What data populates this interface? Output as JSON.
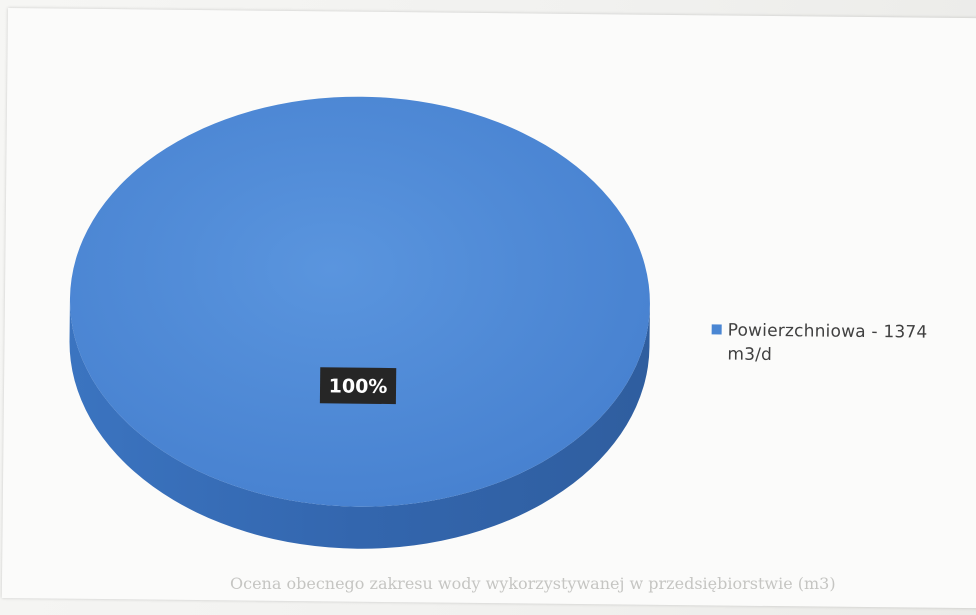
{
  "chart_data": {
    "type": "pie",
    "title": "",
    "slices": [
      {
        "label": "Powierzchniowa - 1374 m3/d",
        "value": 1374,
        "unit": "m3/d",
        "percent": 100,
        "percent_label": "100%",
        "color": "#4a86d3"
      }
    ],
    "legend_position": "right",
    "style": "3d"
  },
  "colors": {
    "slice_top": "#4a86d3",
    "slice_side": "#3569b2",
    "label_box": "#262626",
    "label_text": "#ffffff"
  },
  "footer_text": "Ocena obecnego zakresu wody wykorzystywanej w przedsiębiorstwie (m3)"
}
